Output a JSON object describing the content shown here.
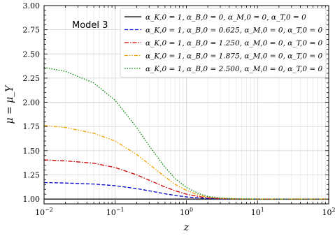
{
  "chart_data": {
    "type": "line",
    "annotation": "Model 3",
    "xlabel": "z",
    "ylabel": "μ = μ_Y",
    "xscale": "log",
    "xlim": [
      0.01,
      100
    ],
    "ylim": [
      0.95,
      3.0
    ],
    "grid": true,
    "legend_position": "top-right",
    "x_tick_labels": [
      {
        "value": 0.01,
        "base": "10",
        "exp": "−2"
      },
      {
        "value": 0.1,
        "base": "10",
        "exp": "−1"
      },
      {
        "value": 1,
        "base": "10",
        "exp": "0"
      },
      {
        "value": 10,
        "base": "10",
        "exp": "1"
      },
      {
        "value": 100,
        "base": "10",
        "exp": "2"
      }
    ],
    "y_tick_labels": [
      {
        "value": 1.0,
        "label": "1.00"
      },
      {
        "value": 1.25,
        "label": "1.25"
      },
      {
        "value": 1.5,
        "label": "1.50"
      },
      {
        "value": 1.75,
        "label": "1.75"
      },
      {
        "value": 2.0,
        "label": "2.00"
      },
      {
        "value": 2.25,
        "label": "2.25"
      },
      {
        "value": 2.5,
        "label": "2.50"
      },
      {
        "value": 2.75,
        "label": "2.75"
      },
      {
        "value": 3.0,
        "label": "3.00"
      }
    ],
    "x": [
      0.01,
      0.02,
      0.05,
      0.1,
      0.2,
      0.3,
      0.5,
      0.7,
      1,
      1.5,
      2,
      3,
      5,
      10,
      30,
      100
    ],
    "series": [
      {
        "legend": "α_K,0 = 1, α_B,0 = 0, α_M,0 = 0, α_T,0 = 0",
        "color": "#000000",
        "dash": "solid",
        "values": [
          1.0,
          1.0,
          1.0,
          1.0,
          1.0,
          1.0,
          1.0,
          1.0,
          1.0,
          1.0,
          1.0,
          1.0,
          1.0,
          1.0,
          1.0,
          1.0
        ]
      },
      {
        "legend": "α_K,0 = 1, α_B,0 = 0.625, α_M,0 = 0, α_T,0 = 0",
        "color": "#0000cc",
        "dash": "dashed",
        "values": [
          1.17,
          1.166,
          1.155,
          1.138,
          1.108,
          1.085,
          1.055,
          1.037,
          1.022,
          1.011,
          1.006,
          1.002,
          1.0,
          1.0,
          1.0,
          1.0
        ]
      },
      {
        "legend": "α_K,0 = 1, α_B,0 = 1.250, α_M,0 = 0, α_T,0 = 0",
        "color": "#cc0000",
        "dash": "dashdot",
        "values": [
          1.405,
          1.395,
          1.37,
          1.325,
          1.25,
          1.195,
          1.125,
          1.085,
          1.05,
          1.025,
          1.013,
          1.005,
          1.0,
          1.0,
          1.0,
          1.0
        ]
      },
      {
        "legend": "α_K,0 = 1, α_B,0 = 1.875, α_M,0 = 0, α_T,0 = 0",
        "color": "#f0a000",
        "dash": "dashdotdot",
        "values": [
          1.76,
          1.74,
          1.68,
          1.6,
          1.46,
          1.36,
          1.23,
          1.15,
          1.09,
          1.04,
          1.02,
          1.008,
          1.002,
          1.0,
          1.0,
          1.0
        ]
      },
      {
        "legend": "α_K,0 = 1, α_B,0 = 2.500, α_M,0 = 0, α_T,0 = 0",
        "color": "#008800",
        "dash": "dotted",
        "values": [
          2.36,
          2.32,
          2.2,
          2.02,
          1.74,
          1.55,
          1.33,
          1.21,
          1.12,
          1.055,
          1.028,
          1.01,
          1.003,
          1.0,
          1.0,
          1.0
        ]
      }
    ]
  }
}
